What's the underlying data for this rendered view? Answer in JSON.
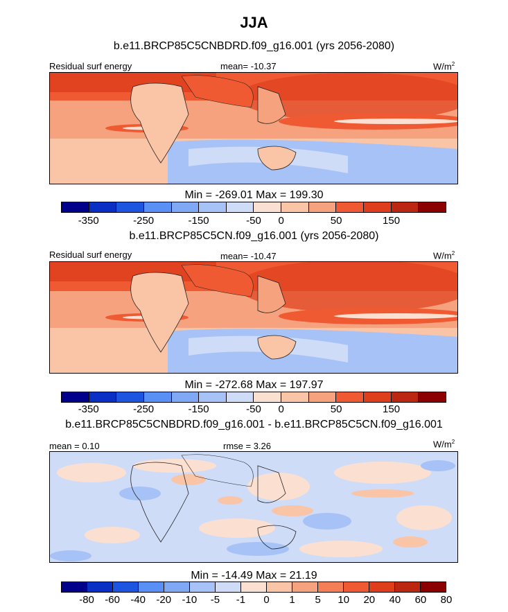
{
  "main_title": "JJA",
  "units_base": "W/m",
  "units_exp": "2",
  "colors": {
    "cool": [
      "#00008b",
      "#0a2fc4",
      "#1e55e0",
      "#3775f0",
      "#5a8ff5",
      "#7fa8f5",
      "#a6c2f7",
      "#cfdcf8"
    ],
    "warm": [
      "#fbe0d2",
      "#fac4a7",
      "#f7a27e",
      "#f47f57",
      "#ef5a32",
      "#de3e1c",
      "#bb2710",
      "#8b0000"
    ],
    "land_outline": "#222222"
  },
  "chart_data": [
    {
      "type": "heatmap",
      "title": "b.e11.BRCP85C5CNBDRD.f09_g16.001 (yrs 2056-2080)",
      "left_label": "Residual surf energy",
      "center_label": "mean= -10.37",
      "mean": -10.37,
      "stats_label": "Min = -269.01 Max = 199.30",
      "min": -269.01,
      "max": 199.3,
      "colorbar_levels": [
        -400,
        -350,
        -300,
        -250,
        -200,
        -150,
        -100,
        -50,
        0,
        25,
        50,
        100,
        150,
        200,
        250
      ],
      "tick_labels": [
        "-350",
        "-250",
        "-150",
        "-50",
        "0",
        "50",
        "150"
      ],
      "tick_positions": [
        1,
        3,
        5,
        7,
        8,
        10,
        12
      ]
    },
    {
      "type": "heatmap",
      "title": "b.e11.BRCP85C5CN.f09_g16.001 (yrs 2056-2080)",
      "left_label": "Residual surf energy",
      "center_label": "mean= -10.47",
      "mean": -10.47,
      "stats_label": "Min = -272.68 Max = 197.97",
      "min": -272.68,
      "max": 197.97,
      "colorbar_levels": [
        -400,
        -350,
        -300,
        -250,
        -200,
        -150,
        -100,
        -50,
        0,
        25,
        50,
        100,
        150,
        200,
        250
      ],
      "tick_labels": [
        "-350",
        "-250",
        "-150",
        "-50",
        "0",
        "50",
        "150"
      ],
      "tick_positions": [
        1,
        3,
        5,
        7,
        8,
        10,
        12
      ]
    },
    {
      "type": "heatmap",
      "title": "b.e11.BRCP85C5CNBDRD.f09_g16.001 - b.e11.BRCP85C5CN.f09_g16.001",
      "left_label": "mean =   0.10",
      "center_label": "rmse =   3.26",
      "mean": 0.1,
      "rmse": 3.26,
      "stats_label": "Min = -14.49 Max =  21.19",
      "min": -14.49,
      "max": 21.19,
      "colorbar_levels": [
        -100,
        -80,
        -60,
        -40,
        -20,
        -10,
        -5,
        -1,
        0,
        1,
        5,
        10,
        20,
        40,
        60,
        80
      ],
      "tick_labels": [
        "-80",
        "-60",
        "-40",
        "-20",
        "-10",
        "-5",
        "-1",
        "0",
        "1",
        "5",
        "10",
        "20",
        "40",
        "60",
        "80"
      ],
      "tick_positions": [
        1,
        2,
        3,
        4,
        5,
        6,
        7,
        8,
        9,
        10,
        11,
        12,
        13,
        14,
        15
      ]
    }
  ]
}
